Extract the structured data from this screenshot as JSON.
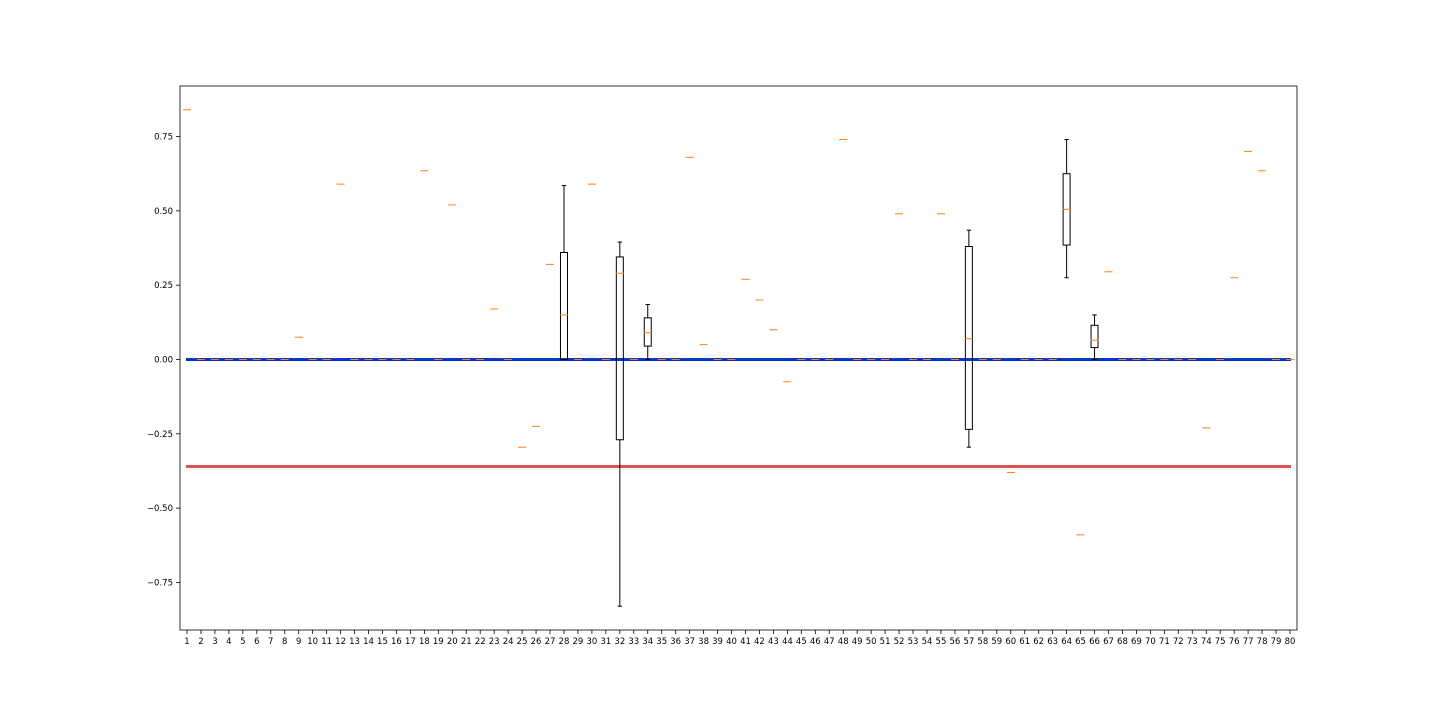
{
  "chart_data": {
    "type": "box",
    "title": "",
    "xlabel": "",
    "ylabel": "",
    "categories": [
      "1",
      "2",
      "3",
      "4",
      "5",
      "6",
      "7",
      "8",
      "9",
      "10",
      "11",
      "12",
      "13",
      "14",
      "15",
      "16",
      "17",
      "18",
      "19",
      "20",
      "21",
      "22",
      "23",
      "24",
      "25",
      "26",
      "27",
      "28",
      "29",
      "30",
      "31",
      "32",
      "33",
      "34",
      "35",
      "36",
      "37",
      "38",
      "39",
      "40",
      "41",
      "42",
      "43",
      "44",
      "45",
      "46",
      "47",
      "48",
      "49",
      "50",
      "51",
      "52",
      "53",
      "54",
      "55",
      "56",
      "57",
      "58",
      "59",
      "60",
      "61",
      "62",
      "63",
      "64",
      "65",
      "66",
      "67",
      "68",
      "69",
      "70",
      "71",
      "72",
      "73",
      "74",
      "75",
      "76",
      "77",
      "78",
      "79",
      "80"
    ],
    "ylim": [
      -0.91,
      0.92
    ],
    "yticks": [
      -0.75,
      -0.5,
      -0.25,
      0.0,
      0.25,
      0.5,
      0.75
    ],
    "ytick_labels": [
      "−0.75",
      "−0.50",
      "−0.25",
      "0.00",
      "0.25",
      "0.50",
      "0.75"
    ],
    "medians": [
      0.84,
      0,
      0,
      0,
      0,
      0,
      0,
      0,
      0.075,
      0,
      0,
      0.59,
      0,
      0,
      0,
      0,
      0,
      0.635,
      0,
      0.52,
      0,
      0,
      0.17,
      0,
      -0.295,
      -0.225,
      0.32,
      0.15,
      0,
      0.59,
      0,
      0.29,
      0,
      0.09,
      0,
      0,
      0.68,
      0.05,
      0,
      0,
      0.27,
      0.2,
      0.1,
      -0.075,
      0,
      0,
      0,
      0.74,
      0,
      0,
      0,
      0.49,
      0,
      0,
      0.49,
      0,
      0.07,
      0,
      0,
      -0.38,
      0,
      0,
      0,
      0.505,
      -0.59,
      0.065,
      0.295,
      0,
      0,
      0,
      0,
      0,
      0,
      -0.23,
      0,
      0.275,
      0.7,
      0.635,
      0,
      0
    ],
    "boxes": [
      {
        "category": "28",
        "whislo": 0.0,
        "q1": 0.0,
        "med": 0.15,
        "q3": 0.36,
        "whishi": 0.585
      },
      {
        "category": "32",
        "whislo": -0.83,
        "q1": -0.27,
        "med": 0.29,
        "q3": 0.345,
        "whishi": 0.395
      },
      {
        "category": "34",
        "whislo": 0.0,
        "q1": 0.045,
        "med": 0.09,
        "q3": 0.14,
        "whishi": 0.185
      },
      {
        "category": "57",
        "whislo": -0.295,
        "q1": -0.235,
        "med": 0.07,
        "q3": 0.38,
        "whishi": 0.435
      },
      {
        "category": "64",
        "whislo": 0.275,
        "q1": 0.385,
        "med": 0.505,
        "q3": 0.625,
        "whishi": 0.74
      },
      {
        "category": "66",
        "whislo": 0.0,
        "q1": 0.04,
        "med": 0.065,
        "q3": 0.115,
        "whishi": 0.15
      }
    ],
    "hlines": [
      {
        "y": 0.0,
        "color": "#0039c6"
      },
      {
        "y": -0.36,
        "color": "#d9534f"
      }
    ],
    "colors": {
      "box": "#000000",
      "median": "#ff7f0e",
      "axes": "#000000"
    }
  }
}
